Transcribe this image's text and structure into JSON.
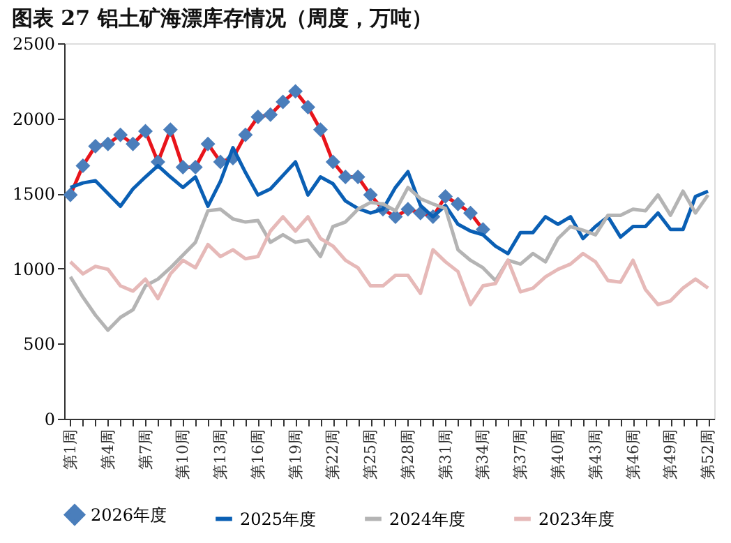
{
  "chart_data": {
    "type": "line",
    "title": "图表 27    铝土矿海漂库存情况（周度，万吨）",
    "categories": [
      "第1周",
      null,
      null,
      "第4周",
      null,
      null,
      "第7周",
      null,
      null,
      "第10周",
      null,
      null,
      "第13周",
      null,
      null,
      "第16周",
      null,
      null,
      "第19周",
      null,
      null,
      "第22周",
      null,
      null,
      "第25周",
      null,
      null,
      "第28周",
      null,
      null,
      "第31周",
      null,
      null,
      "第34周",
      null,
      null,
      "第37周",
      null,
      null,
      "第40周",
      null,
      null,
      "第43周",
      null,
      null,
      "第46周",
      null,
      null,
      "第49周",
      null,
      null,
      "第52周"
    ],
    "series": [
      {
        "name": "2026年度",
        "color": "#e8141b",
        "marker": "diamond",
        "colors": [
          "#4a7ebb",
          "#4a7ebb",
          "#4a7ebb",
          "#4a7ebb",
          "#4a7ebb",
          "#4a7ebb",
          "#4a7ebb",
          "#4a7ebb",
          "#4a7ebb",
          "#4a7ebb",
          "#4a7ebb",
          "#4a7ebb",
          "#4a7ebb",
          "#4a7ebb",
          "#4a7ebb",
          "#4a7ebb",
          "#4a7ebb",
          "#4a7ebb",
          "#4a7ebb",
          "#4a7ebb",
          "#4a7ebb",
          "#4a7ebb",
          "#4a7ebb",
          "#4a7ebb",
          "#4a7ebb",
          "#4a7ebb",
          "#4a7ebb",
          "#4a7ebb",
          "#4a7ebb",
          "#4a7ebb",
          "#4a7ebb",
          "#4a7ebb",
          "#4a7ebb",
          "#4a7ebb",
          null,
          null,
          null,
          null,
          null,
          null,
          null,
          null,
          null,
          null,
          null,
          null,
          null,
          null,
          null,
          null,
          null,
          null
        ],
        "values": [
          1490,
          1685,
          1815,
          1830,
          1890,
          1830,
          1915,
          1710,
          1925,
          1675,
          1675,
          1830,
          1710,
          1735,
          1890,
          2010,
          2025,
          2110,
          2180,
          2075,
          1925,
          1710,
          1610,
          1610,
          1490,
          1395,
          1345,
          1395,
          1370,
          1345,
          1480,
          1430,
          1370,
          1260,
          null,
          null,
          null,
          null,
          null,
          null,
          null,
          null,
          null,
          null,
          null,
          null,
          null,
          null,
          null,
          null,
          null,
          null
        ]
      },
      {
        "name": "2025年度",
        "color": "#0a5fb4",
        "marker": "none",
        "values": [
          1540,
          1570,
          1585,
          1500,
          1415,
          1530,
          1610,
          1685,
          1610,
          1540,
          1610,
          1415,
          1580,
          1805,
          1640,
          1490,
          1530,
          1620,
          1710,
          1490,
          1610,
          1565,
          1450,
          1400,
          1370,
          1395,
          1540,
          1645,
          1420,
          1345,
          1420,
          1295,
          1250,
          1225,
          1150,
          1100,
          1240,
          1240,
          1345,
          1295,
          1345,
          1200,
          1280,
          1345,
          1210,
          1280,
          1280,
          1370,
          1260,
          1260,
          1480,
          1515
        ]
      },
      {
        "name": "2024年度",
        "color": "#b4b4b4",
        "marker": "none",
        "values": [
          945,
          810,
          690,
          590,
          675,
          725,
          885,
          930,
          1005,
          1090,
          1175,
          1385,
          1395,
          1330,
          1310,
          1320,
          1175,
          1225,
          1175,
          1190,
          1080,
          1280,
          1310,
          1395,
          1440,
          1430,
          1385,
          1540,
          1465,
          1430,
          1400,
          1125,
          1055,
          1005,
          920,
          1055,
          1030,
          1100,
          1045,
          1200,
          1280,
          1255,
          1225,
          1355,
          1355,
          1395,
          1385,
          1490,
          1355,
          1515,
          1370,
          1490
        ]
      },
      {
        "name": "2023年度",
        "color": "#e6b9b8",
        "marker": "none",
        "values": [
          1045,
          965,
          1015,
          995,
          885,
          850,
          930,
          800,
          965,
          1055,
          1005,
          1160,
          1080,
          1125,
          1065,
          1080,
          1250,
          1345,
          1250,
          1345,
          1200,
          1150,
          1055,
          1005,
          885,
          885,
          955,
          955,
          835,
          1125,
          1045,
          980,
          760,
          885,
          900,
          1055,
          845,
          870,
          945,
          995,
          1030,
          1100,
          1045,
          920,
          910,
          1055,
          860,
          760,
          785,
          870,
          930,
          870
        ]
      }
    ],
    "ylim": [
      0,
      2500
    ],
    "yticks": [
      0,
      500,
      1000,
      1500,
      2000,
      2500
    ],
    "grid": false,
    "legend": "bottom"
  }
}
